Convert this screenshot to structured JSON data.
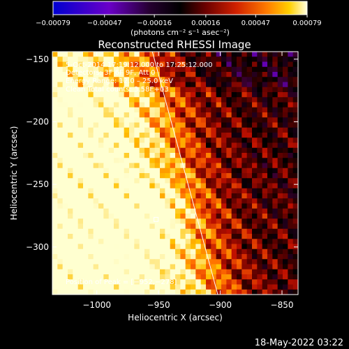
{
  "chart_data": {
    "type": "heatmap",
    "title": "Reconstructed RHESSI Image",
    "xlabel": "Heliocentric X (arcsec)",
    "ylabel": "Heliocentric Y (arcsec)",
    "xlim": [
      -1036,
      -837
    ],
    "ylim": [
      -338,
      -144
    ],
    "xticks": [
      -1000,
      -950,
      -900,
      -850
    ],
    "xtick_labels": [
      "−1000",
      "−950",
      "−900",
      "−850"
    ],
    "yticks": [
      -150,
      -200,
      -250,
      -300
    ],
    "ytick_labels": [
      "−150",
      "−200",
      "−250",
      "−300"
    ],
    "colorbar": {
      "ticks": [
        -0.00079,
        -0.00047,
        -0.00016,
        0.00016,
        0.00047,
        0.00079
      ],
      "tick_labels": [
        "−0.00079",
        "−0.00047",
        "−0.00016",
        "0.00016",
        "0.00047",
        "0.00079"
      ],
      "units_label": "(photons cm⁻² s⁻¹ asec⁻²)"
    },
    "annotations": [
      "5-Oct-2014 17:19:12.000 to 17:25:12.000",
      "Detectors: 3F 6F 9F, Att 0",
      "Energy Range: 12.0 – 25.0 keV",
      "Clean    Total counts: 3.58E+03",
      "Position of Peak = [−952,−278]"
    ],
    "peak": {
      "x": -952,
      "y": -278
    },
    "limb_line": [
      {
        "x": -955,
        "y": -144
      },
      {
        "x": -902,
        "y": -338
      }
    ],
    "grid": false,
    "colormap": [
      "#0000d0",
      "#6a00c8",
      "#3a0030",
      "#000000",
      "#5a0000",
      "#c01000",
      "#ff6a00",
      "#ffc000",
      "#ffffd0"
    ]
  },
  "footer": {
    "timestamp": "18-May-2022 03:22"
  }
}
